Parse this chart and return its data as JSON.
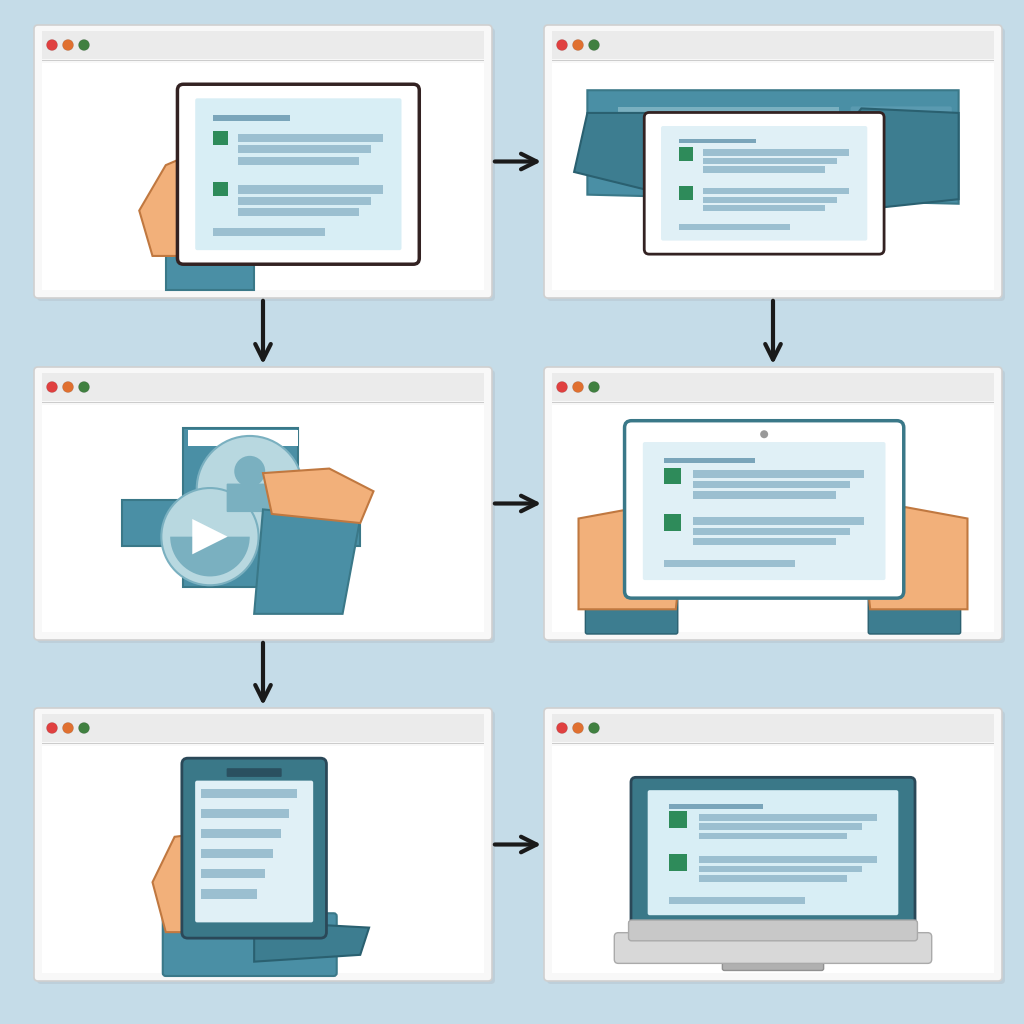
{
  "bg_color": "#c5dce8",
  "window_bg": "#f8f8f8",
  "window_border": "#d0d0d0",
  "content_bg": "#ffffff",
  "teal_color": "#4a8fa5",
  "teal_dark": "#3a7888",
  "teal_hand": "#3d7d90",
  "skin_color": "#f2b07a",
  "skin_dark": "#d99060",
  "skin_outline": "#c07840",
  "text_line_color": "#9bbfd0",
  "text_line_dark": "#7aa5ba",
  "green_sq": "#2e8b5a",
  "arrow_color": "#1a1a1a",
  "dot_red": "#e04040",
  "dot_orange": "#e07030",
  "dot_green": "#408040",
  "outline_dark": "#2a2a2a",
  "tablet_outline": "#332222",
  "bar_color": "#ebebeb",
  "shadow_color": "#b0b8c0"
}
